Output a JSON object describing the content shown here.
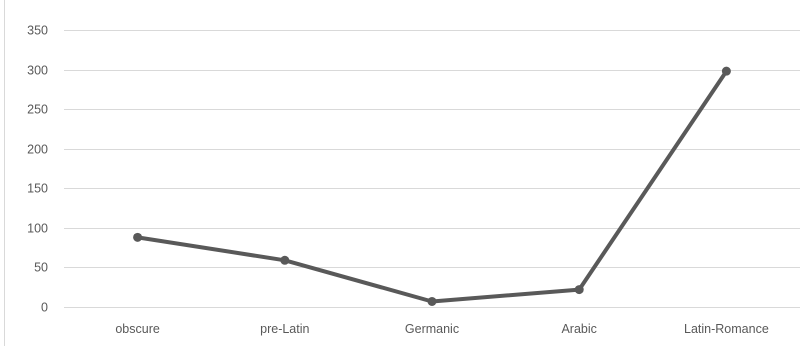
{
  "chart_data": {
    "type": "line",
    "title": "",
    "xlabel": "",
    "ylabel": "",
    "categories": [
      "obscure",
      "pre-Latin",
      "Germanic",
      "Arabic",
      "Latin-Romance"
    ],
    "series": [
      {
        "values": [
          88,
          59,
          7,
          22,
          298
        ]
      }
    ],
    "ylim": [
      0,
      350
    ],
    "yticks": [
      "0",
      "50",
      "100",
      "150",
      "200",
      "250",
      "300",
      "350"
    ],
    "grid": true,
    "legend": "none",
    "colors": {
      "line": "#595959",
      "grid": "#d9d9d9",
      "text": "#595959"
    }
  }
}
